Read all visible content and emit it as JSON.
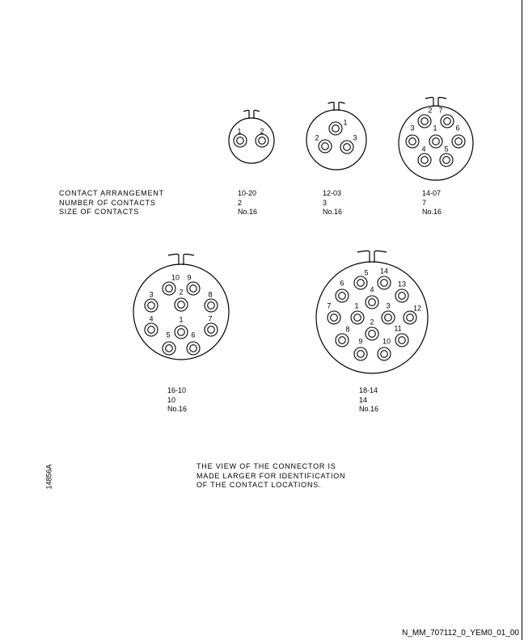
{
  "row_labels": {
    "arrangement": "CONTACT ARRANGEMENT",
    "contacts": "NUMBER OF CONTACTS",
    "size": "SIZE OF CONTACTS"
  },
  "connectors": [
    {
      "arrangement": "10-20",
      "contacts": "2",
      "size": "No.16",
      "pin_labels": [
        "1",
        "2"
      ]
    },
    {
      "arrangement": "12-03",
      "contacts": "3",
      "size": "No.16",
      "pin_labels": [
        "1",
        "2",
        "3"
      ]
    },
    {
      "arrangement": "14-07",
      "contacts": "7",
      "size": "No.16",
      "pin_labels": [
        "1",
        "2",
        "3",
        "4",
        "5",
        "6",
        "7"
      ]
    },
    {
      "arrangement": "16-10",
      "contacts": "10",
      "size": "No.16",
      "pin_labels": [
        "1",
        "2",
        "3",
        "4",
        "5",
        "6",
        "7",
        "8",
        "9",
        "10"
      ]
    },
    {
      "arrangement": "18-14",
      "contacts": "14",
      "size": "No.16",
      "pin_labels": [
        "1",
        "2",
        "3",
        "4",
        "5",
        "6",
        "7",
        "8",
        "9",
        "10",
        "11",
        "12",
        "13",
        "14"
      ]
    }
  ],
  "note": {
    "line1": "THE VIEW OF THE CONNECTOR IS",
    "line2": "MADE LARGER FOR IDENTIFICATION",
    "line3": "OF THE CONTACT LOCATIONS."
  },
  "figure_id": "14856A",
  "doc_ref": "N_MM_707112_0_YEM0_01_00"
}
